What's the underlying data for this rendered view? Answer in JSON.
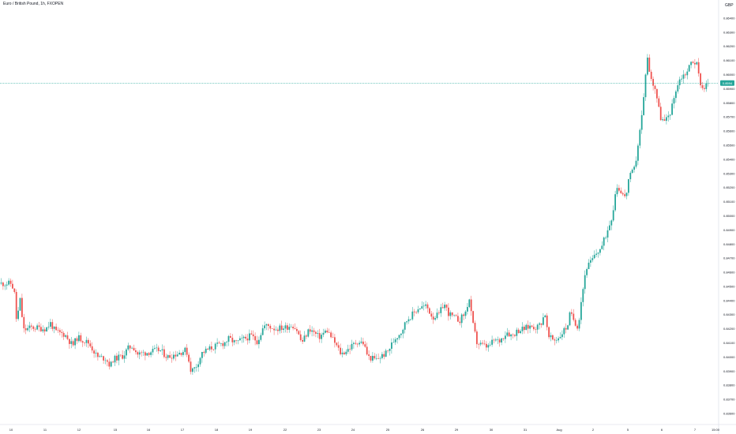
{
  "header": {
    "title": "Euro / British Pound, 1h, FXOPEN",
    "currency": "GBP"
  },
  "colors": {
    "up": "#26a69a",
    "down": "#ef5350",
    "wick": "#b0b7c3",
    "price_line": "#26a69a",
    "tag_bg": "#26a69a"
  },
  "price_tag": "0.8594",
  "chart_data": {
    "type": "candlestick",
    "title": "Euro / British Pound, 1h, FXOPEN",
    "ylabel": "GBP",
    "ylim": [
      0.836,
      0.8645
    ],
    "y_ticks": [
      0.864,
      0.863,
      0.862,
      0.861,
      0.86,
      0.859,
      0.858,
      0.857,
      0.856,
      0.855,
      0.854,
      0.853,
      0.852,
      0.851,
      0.85,
      0.849,
      0.848,
      0.847,
      0.846,
      0.845,
      0.844,
      0.843,
      0.842,
      0.841,
      0.84,
      0.839,
      0.838,
      0.837,
      0.836
    ],
    "y_tick_labels": [
      "0.86400",
      "0.86300",
      "0.86200",
      "0.86100",
      "0.86000",
      "0.85900",
      "0.85800",
      "0.85700",
      "0.85600",
      "0.85500",
      "0.85400",
      "0.85300",
      "0.85200",
      "0.85100",
      "0.85000",
      "0.84900",
      "0.84800",
      "0.84700",
      "0.84600",
      "0.84500",
      "0.84400",
      "0.84300",
      "0.84200",
      "0.84100",
      "0.84000",
      "0.83900",
      "0.83800",
      "0.83700",
      "0.83600"
    ],
    "x_ticks": [
      "10",
      "11",
      "12",
      "15",
      "16",
      "17",
      "18",
      "19",
      "22",
      "23",
      "24",
      "25",
      "26",
      "29",
      "30",
      "31",
      "Aug",
      "2",
      "5",
      "6",
      "7",
      "15:00"
    ],
    "current_price": 0.8594,
    "grid": false,
    "anchors": [
      [
        0,
        0.8452
      ],
      [
        14,
        0.8452
      ],
      [
        18,
        0.8447
      ],
      [
        21,
        0.8425
      ],
      [
        26,
        0.8442
      ],
      [
        28,
        0.8428
      ],
      [
        30,
        0.8419
      ],
      [
        40,
        0.8421
      ],
      [
        58,
        0.842
      ],
      [
        64,
        0.8424
      ],
      [
        70,
        0.8418
      ],
      [
        82,
        0.8416
      ],
      [
        92,
        0.8408
      ],
      [
        98,
        0.8414
      ],
      [
        112,
        0.841
      ],
      [
        118,
        0.8405
      ],
      [
        123,
        0.84
      ],
      [
        134,
        0.8399
      ],
      [
        140,
        0.8393
      ],
      [
        142,
        0.8398
      ],
      [
        156,
        0.8401
      ],
      [
        162,
        0.8406
      ],
      [
        168,
        0.8408
      ],
      [
        174,
        0.8402
      ],
      [
        184,
        0.8403
      ],
      [
        202,
        0.8405
      ],
      [
        212,
        0.84
      ],
      [
        222,
        0.8402
      ],
      [
        236,
        0.8405
      ],
      [
        242,
        0.839
      ],
      [
        248,
        0.8393
      ],
      [
        256,
        0.8403
      ],
      [
        266,
        0.8406
      ],
      [
        274,
        0.8408
      ],
      [
        284,
        0.841
      ],
      [
        290,
        0.8413
      ],
      [
        298,
        0.841
      ],
      [
        306,
        0.8412
      ],
      [
        318,
        0.8415
      ],
      [
        326,
        0.8411
      ],
      [
        334,
        0.8422
      ],
      [
        340,
        0.8422
      ],
      [
        348,
        0.842
      ],
      [
        362,
        0.8421
      ],
      [
        370,
        0.8423
      ],
      [
        376,
        0.8419
      ],
      [
        382,
        0.841
      ],
      [
        392,
        0.842
      ],
      [
        404,
        0.8414
      ],
      [
        414,
        0.8419
      ],
      [
        424,
        0.841
      ],
      [
        432,
        0.8402
      ],
      [
        442,
        0.8406
      ],
      [
        452,
        0.8411
      ],
      [
        460,
        0.841
      ],
      [
        466,
        0.84
      ],
      [
        476,
        0.8398
      ],
      [
        484,
        0.8401
      ],
      [
        490,
        0.8403
      ],
      [
        500,
        0.8413
      ],
      [
        508,
        0.8418
      ],
      [
        516,
        0.8427
      ],
      [
        524,
        0.8431
      ],
      [
        530,
        0.8435
      ],
      [
        540,
        0.8436
      ],
      [
        548,
        0.8428
      ],
      [
        556,
        0.843
      ],
      [
        562,
        0.8438
      ],
      [
        568,
        0.8431
      ],
      [
        574,
        0.8428
      ],
      [
        582,
        0.8426
      ],
      [
        590,
        0.8432
      ],
      [
        594,
        0.8442
      ],
      [
        598,
        0.8425
      ],
      [
        604,
        0.841
      ],
      [
        612,
        0.8408
      ],
      [
        618,
        0.8407
      ],
      [
        626,
        0.8412
      ],
      [
        632,
        0.8411
      ],
      [
        642,
        0.8418
      ],
      [
        648,
        0.8415
      ],
      [
        656,
        0.8419
      ],
      [
        664,
        0.842
      ],
      [
        672,
        0.8422
      ],
      [
        680,
        0.8421
      ],
      [
        686,
        0.8425
      ],
      [
        690,
        0.8432
      ],
      [
        694,
        0.8414
      ],
      [
        702,
        0.8412
      ],
      [
        708,
        0.8414
      ],
      [
        714,
        0.8419
      ],
      [
        718,
        0.8421
      ],
      [
        722,
        0.8431
      ],
      [
        728,
        0.8425
      ],
      [
        732,
        0.8421
      ],
      [
        736,
        0.844
      ],
      [
        742,
        0.8463
      ],
      [
        748,
        0.8467
      ],
      [
        756,
        0.8474
      ],
      [
        762,
        0.8478
      ],
      [
        770,
        0.8491
      ],
      [
        776,
        0.8502
      ],
      [
        780,
        0.8521
      ],
      [
        786,
        0.8518
      ],
      [
        792,
        0.8512
      ],
      [
        796,
        0.8526
      ],
      [
        804,
        0.8534
      ],
      [
        808,
        0.8551
      ],
      [
        812,
        0.8567
      ],
      [
        816,
        0.8588
      ],
      [
        819,
        0.8615
      ],
      [
        824,
        0.8597
      ],
      [
        830,
        0.859
      ],
      [
        836,
        0.857
      ],
      [
        842,
        0.8566
      ],
      [
        850,
        0.8575
      ],
      [
        856,
        0.859
      ],
      [
        862,
        0.8598
      ],
      [
        870,
        0.8602
      ],
      [
        876,
        0.861
      ],
      [
        882,
        0.8608
      ],
      [
        886,
        0.8596
      ],
      [
        890,
        0.859
      ],
      [
        896,
        0.8594
      ]
    ]
  }
}
